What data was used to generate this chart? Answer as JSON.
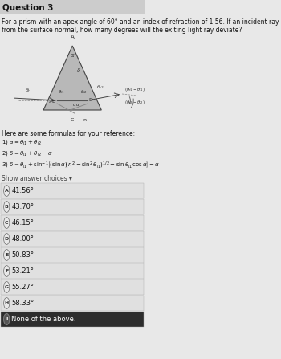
{
  "title": "Question 3",
  "question_line1": "For a prism with an apex angle of 60° and an index of refraction of 1.56. If an incident ray enters the prism at 35°",
  "question_line2": "from the surface normal, how many degrees will the exiting light ray deviate?",
  "formulas_header": "Here are some formulas for your reference:",
  "show_answer": "Show answer choices ▾",
  "choices": [
    {
      "label": "A",
      "text": "41.56°",
      "dark": false
    },
    {
      "label": "B",
      "text": "43.70°",
      "dark": false
    },
    {
      "label": "C",
      "text": "46.15°",
      "dark": false
    },
    {
      "label": "D",
      "text": "48.00°",
      "dark": false
    },
    {
      "label": "E",
      "text": "50.83°",
      "dark": false
    },
    {
      "label": "F",
      "text": "53.21°",
      "dark": false
    },
    {
      "label": "G",
      "text": "55.27°",
      "dark": false
    },
    {
      "label": "H",
      "text": "58.33°",
      "dark": false
    },
    {
      "label": "I",
      "text": "None of the above.",
      "dark": true
    }
  ],
  "page_bg": "#e8e8e8",
  "content_bg": "#f2f2f2",
  "choice_bg": "#e0e0e0",
  "choice_dark_bg": "#2d2d2d",
  "choice_text": "#111111",
  "choice_dark_text": "#ffffff",
  "title_color": "#111111",
  "text_color": "#111111",
  "show_answer_color": "#444444"
}
